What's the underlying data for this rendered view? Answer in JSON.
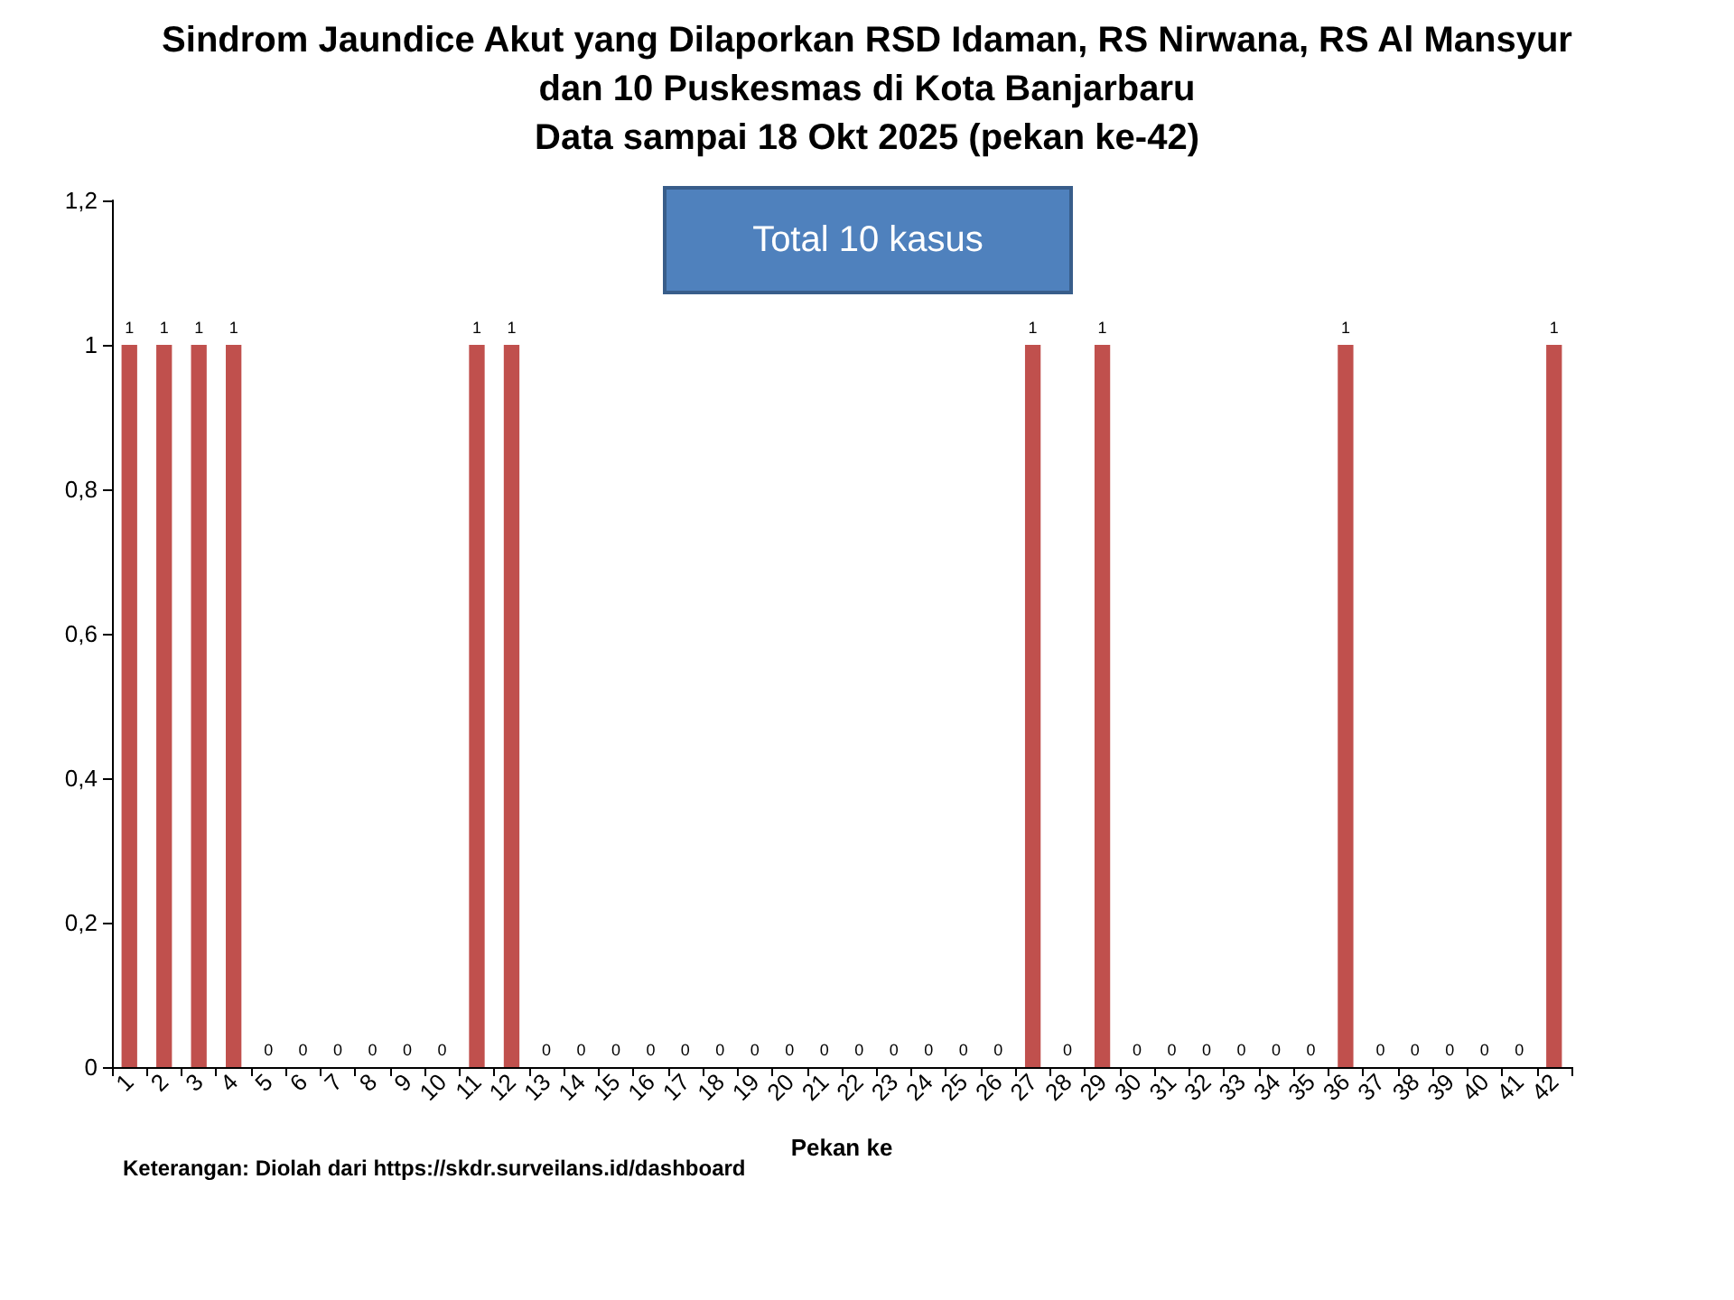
{
  "chart_data": {
    "type": "bar",
    "title": "Sindrom Jaundice Akut yang Dilaporkan RSD Idaman, RS Nirwana, RS Al Mansyur\ndan 10 Puskesmas di Kota Banjarbaru\nData sampai 18 Okt 2025 (pekan ke-42)",
    "xlabel": "Pekan ke",
    "categories": [
      "1",
      "2",
      "3",
      "4",
      "5",
      "6",
      "7",
      "8",
      "9",
      "10",
      "11",
      "12",
      "13",
      "14",
      "15",
      "16",
      "17",
      "18",
      "19",
      "20",
      "21",
      "22",
      "23",
      "24",
      "25",
      "26",
      "27",
      "28",
      "29",
      "30",
      "31",
      "32",
      "33",
      "34",
      "35",
      "36",
      "37",
      "38",
      "39",
      "40",
      "41",
      "42"
    ],
    "values": [
      1,
      1,
      1,
      1,
      0,
      0,
      0,
      0,
      0,
      0,
      1,
      1,
      0,
      0,
      0,
      0,
      0,
      0,
      0,
      0,
      0,
      0,
      0,
      0,
      0,
      0,
      1,
      0,
      1,
      0,
      0,
      0,
      0,
      0,
      0,
      1,
      0,
      0,
      0,
      0,
      0,
      1
    ],
    "color": "#c0504d",
    "data_labels": true,
    "grid": false,
    "ylim": [
      0,
      1.2
    ],
    "yticks": [
      0,
      {
        "value": 0.2,
        "label": "0,2"
      },
      {
        "value": 0.4,
        "label": "0,4"
      },
      {
        "value": 0.6,
        "label": "0,6"
      },
      {
        "value": 0.8,
        "label": "0,8"
      },
      1,
      {
        "value": 1.2,
        "label": "1,2"
      }
    ],
    "annotations": [
      "Total 10 kasus",
      "Keterangan: Diolah dari https://skdr.surveilans.id/dashboard"
    ]
  }
}
